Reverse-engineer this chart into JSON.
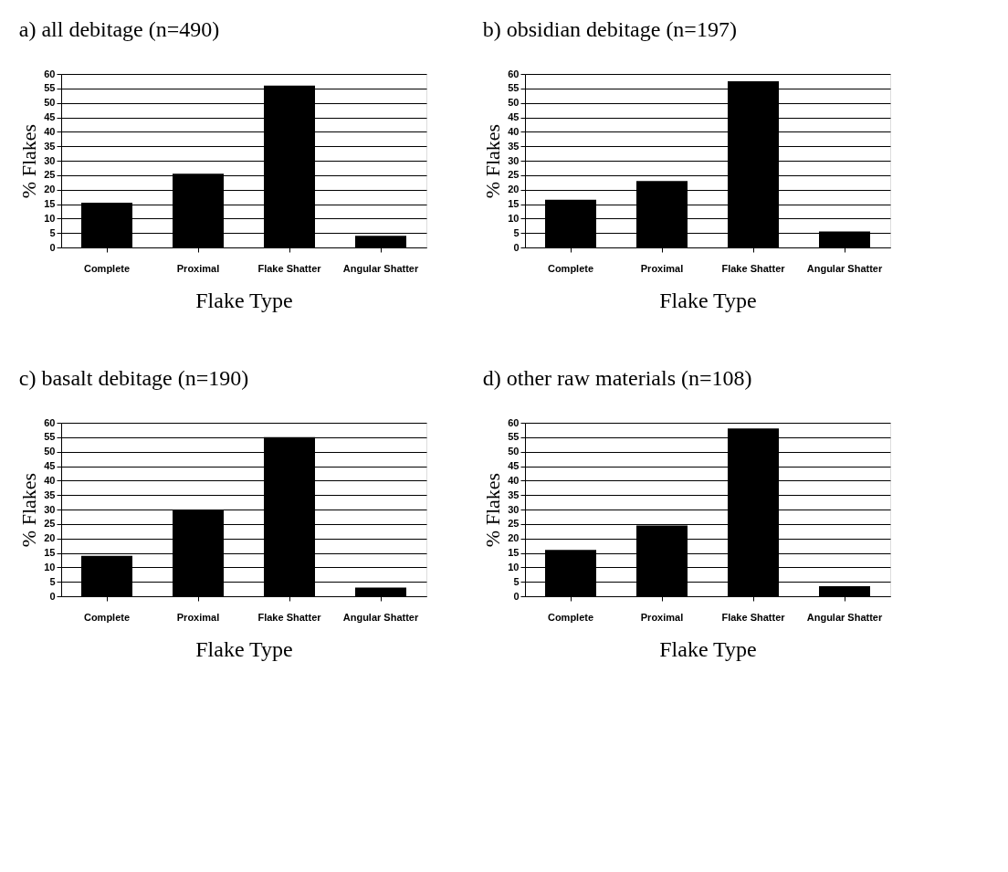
{
  "chart_data": [
    {
      "type": "bar",
      "title": "a) all debitage (n=490)",
      "xlabel": "Flake Type",
      "ylabel": "% Flakes",
      "categories": [
        "Complete",
        "Proximal",
        "Flake Shatter",
        "Angular Shatter"
      ],
      "values": [
        15.5,
        25.5,
        56,
        4
      ],
      "color": "#000000",
      "ylim": [
        0,
        60
      ],
      "yticks": [
        0,
        5,
        10,
        15,
        20,
        25,
        30,
        35,
        40,
        45,
        50,
        55,
        60
      ],
      "grid": "y"
    },
    {
      "type": "bar",
      "title": "b) obsidian debitage (n=197)",
      "xlabel": "Flake Type",
      "ylabel": "% Flakes",
      "categories": [
        "Complete",
        "Proximal",
        "Flake Shatter",
        "Angular Shatter"
      ],
      "values": [
        16.5,
        23,
        57.5,
        5.5
      ],
      "color": "#000000",
      "ylim": [
        0,
        60
      ],
      "yticks": [
        0,
        5,
        10,
        15,
        20,
        25,
        30,
        35,
        40,
        45,
        50,
        55,
        60
      ],
      "grid": "y"
    },
    {
      "type": "bar",
      "title": "c) basalt debitage (n=190)",
      "xlabel": "Flake Type",
      "ylabel": "% Flakes",
      "categories": [
        "Complete",
        "Proximal",
        "Flake Shatter",
        "Angular Shatter"
      ],
      "values": [
        14,
        30,
        55,
        3
      ],
      "color": "#000000",
      "ylim": [
        0,
        60
      ],
      "yticks": [
        0,
        5,
        10,
        15,
        20,
        25,
        30,
        35,
        40,
        45,
        50,
        55,
        60
      ],
      "grid": "y"
    },
    {
      "type": "bar",
      "title": "d) other raw materials (n=108)",
      "xlabel": "Flake Type",
      "ylabel": "% Flakes",
      "categories": [
        "Complete",
        "Proximal",
        "Flake Shatter",
        "Angular Shatter"
      ],
      "values": [
        16,
        24.5,
        58,
        3.5
      ],
      "color": "#000000",
      "ylim": [
        0,
        60
      ],
      "yticks": [
        0,
        5,
        10,
        15,
        20,
        25,
        30,
        35,
        40,
        45,
        50,
        55,
        60
      ],
      "grid": "y"
    }
  ]
}
